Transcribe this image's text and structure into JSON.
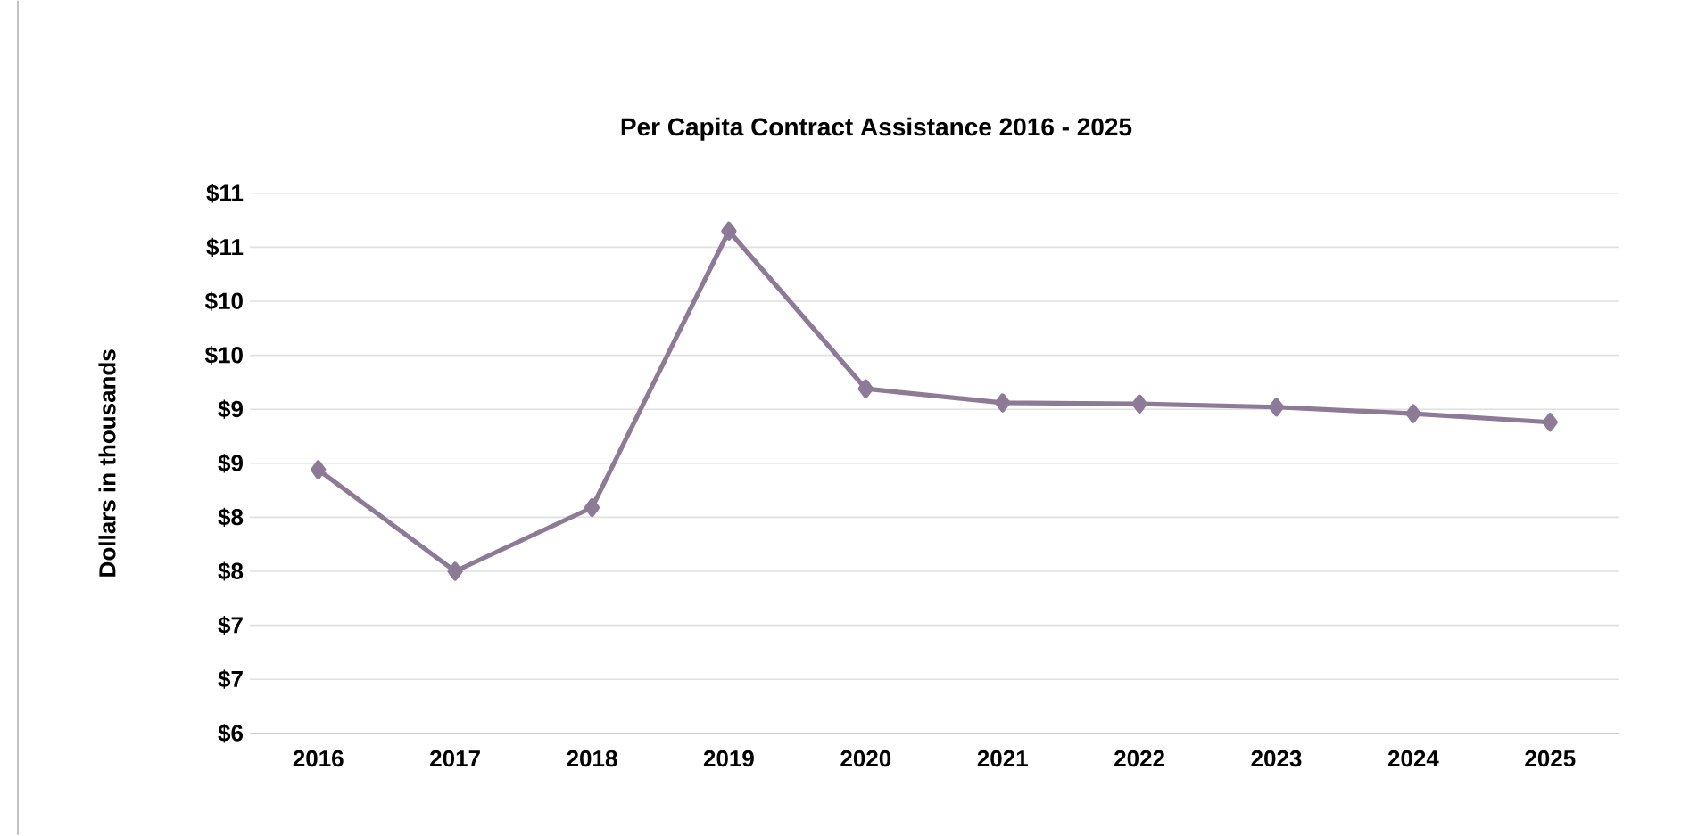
{
  "chart_data": {
    "type": "line",
    "title": "Per Capita Contract Assistance 2016 - 2025",
    "ylabel": "Dollars in thousands",
    "categories": [
      "2016",
      "2017",
      "2018",
      "2019",
      "2020",
      "2021",
      "2022",
      "2023",
      "2024",
      "2025"
    ],
    "series": [
      {
        "color": "#8c7a96",
        "values": [
          8.44,
          7.5,
          8.09,
          10.65,
          9.19,
          9.06,
          9.05,
          9.02,
          8.96,
          8.88
        ]
      }
    ],
    "ylim": [
      6,
      11
    ],
    "yticks": [
      {
        "value": 6,
        "label": "$6"
      },
      {
        "value": 6.5,
        "label": "$7"
      },
      {
        "value": 7,
        "label": "$7"
      },
      {
        "value": 7.5,
        "label": "$8"
      },
      {
        "value": 8,
        "label": "$8"
      },
      {
        "value": 8.5,
        "label": "$9"
      },
      {
        "value": 9,
        "label": "$9"
      },
      {
        "value": 9.5,
        "label": "$10"
      },
      {
        "value": 10,
        "label": "$10"
      },
      {
        "value": 10.5,
        "label": "$11"
      },
      {
        "value": 11,
        "label": "$11"
      }
    ],
    "grid": "y",
    "marker": "diamond"
  }
}
